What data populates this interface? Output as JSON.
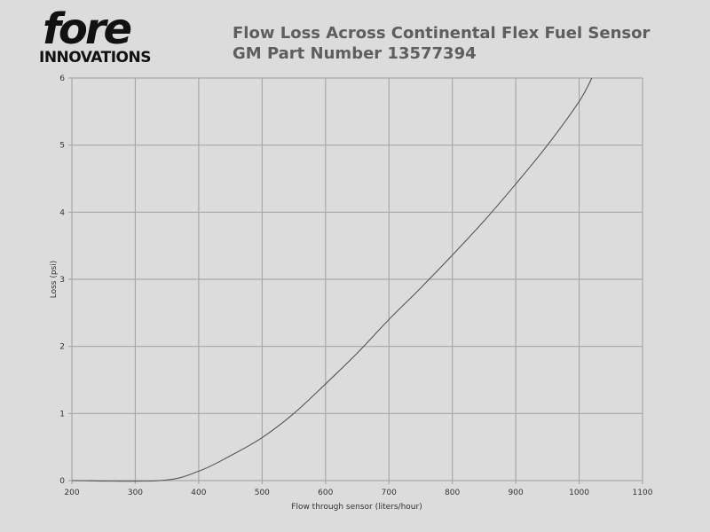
{
  "logo": {
    "brand": "fore",
    "sub": "INNOVATIONS"
  },
  "chart_data": {
    "type": "line",
    "title": "Flow Loss Across Continental Flex Fuel Sensor",
    "subtitle": "GM Part Number 13577394",
    "xlabel": "Flow through sensor (liters/hour)",
    "ylabel": "Loss (psi)",
    "xlim": [
      200,
      1100
    ],
    "ylim": [
      0,
      6
    ],
    "xticks": [
      "200",
      "300",
      "400",
      "500",
      "600",
      "700",
      "800",
      "900",
      "1000",
      "1100"
    ],
    "yticks": [
      "0",
      "1",
      "2",
      "3",
      "4",
      "5",
      "6"
    ],
    "grid": true,
    "line_color": "#555555",
    "series": [
      {
        "x": [
          200,
          340,
          400,
          450,
          500,
          550,
          600,
          650,
          700,
          750,
          800,
          850,
          900,
          950,
          1000,
          1020
        ],
        "y": [
          0,
          0,
          0.14,
          0.37,
          0.64,
          1.0,
          1.44,
          1.9,
          2.4,
          2.87,
          3.36,
          3.87,
          4.42,
          5.0,
          5.65,
          6.0
        ]
      }
    ]
  }
}
